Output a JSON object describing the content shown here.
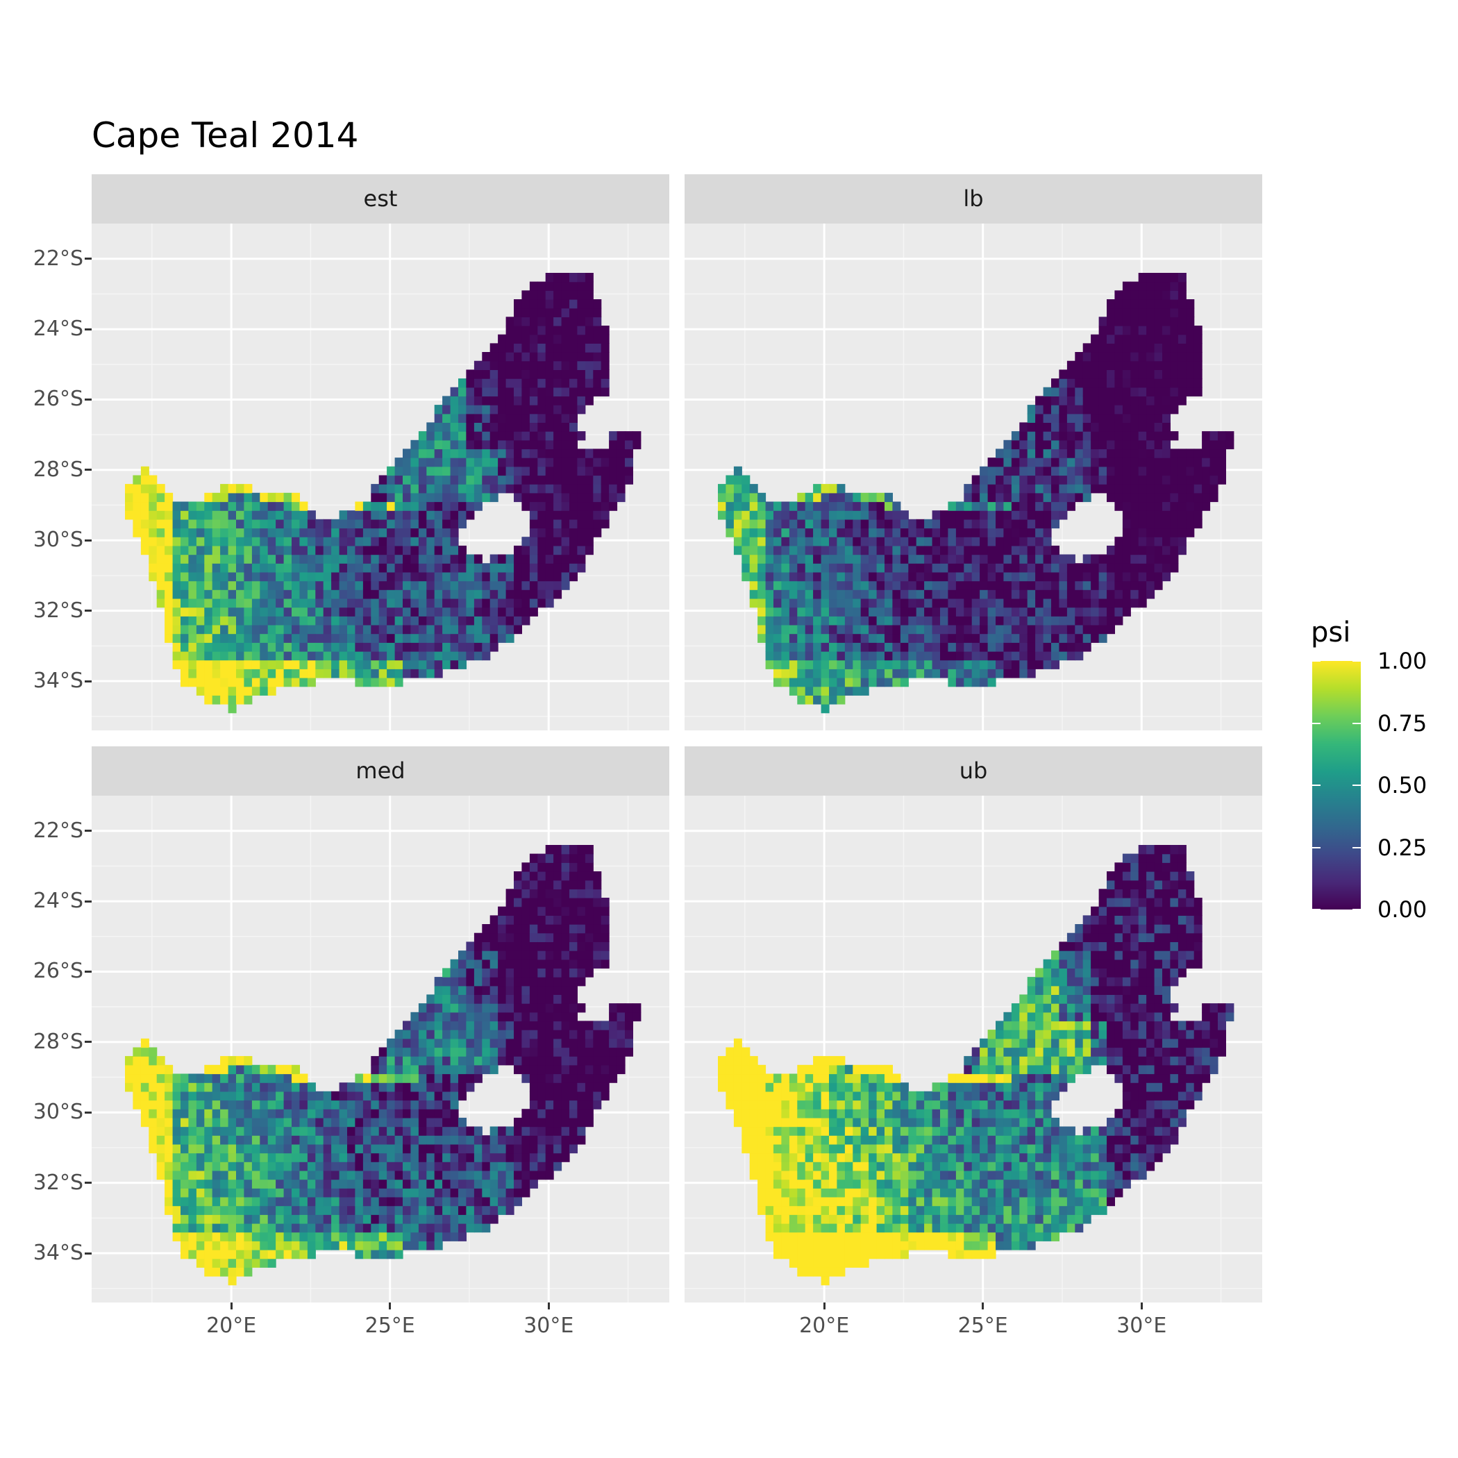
{
  "title": "Cape Teal 2014",
  "panels": [
    {
      "label": "est",
      "intensity": 0.55
    },
    {
      "label": "lb",
      "intensity": 0.3
    },
    {
      "label": "med",
      "intensity": 0.55
    },
    {
      "label": "ub",
      "intensity": 0.85
    }
  ],
  "axes": {
    "x_ticks": [
      {
        "value": 20,
        "label": "20°E"
      },
      {
        "value": 25,
        "label": "25°E"
      },
      {
        "value": 30,
        "label": "30°E"
      }
    ],
    "y_ticks": [
      {
        "value": -22,
        "label": "22°S"
      },
      {
        "value": -24,
        "label": "24°S"
      },
      {
        "value": -26,
        "label": "26°S"
      },
      {
        "value": -28,
        "label": "28°S"
      },
      {
        "value": -30,
        "label": "30°S"
      },
      {
        "value": -32,
        "label": "32°S"
      },
      {
        "value": -34,
        "label": "34°S"
      }
    ],
    "x_range": [
      15.6,
      33.8
    ],
    "y_range": [
      -35.4,
      -21.0
    ]
  },
  "legend": {
    "title": "psi",
    "labels": [
      "1.00",
      "0.75",
      "0.50",
      "0.25",
      "0.00"
    ],
    "values": [
      1.0,
      0.75,
      0.5,
      0.25,
      0.0
    ],
    "colormap": "viridis"
  },
  "chart_data": {
    "type": "heatmap",
    "title": "Cape Teal 2014",
    "facets": [
      "est",
      "lb",
      "med",
      "ub"
    ],
    "fill": "psi",
    "fill_range": [
      0,
      1
    ],
    "x_ticks": [
      "20°E",
      "25°E",
      "30°E"
    ],
    "y_ticks": [
      "22°S",
      "24°S",
      "26°S",
      "28°S",
      "30°S",
      "32°S",
      "34°S"
    ],
    "legend": "right"
  }
}
